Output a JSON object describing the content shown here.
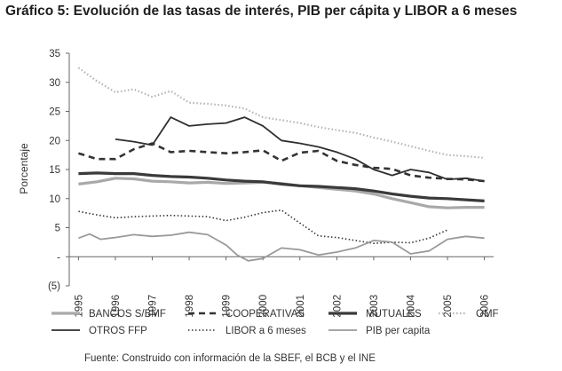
{
  "title": "Gráfico 5: Evolución de las tasas de interés, PIB per cápita y LIBOR a 6 meses",
  "source": "Fuente: Construido con información de la SBEF, el BCB y el INE",
  "chart_data": {
    "type": "line",
    "ylabel": "Porcentaje",
    "xlabel": "",
    "ylim": [
      -5,
      35
    ],
    "xlim": [
      1995,
      2006
    ],
    "yticks": [
      -5,
      0,
      5,
      10,
      15,
      20,
      25,
      30,
      35
    ],
    "yticklabels": [
      "(5)",
      "-",
      "5",
      "10",
      "15",
      "20",
      "25",
      "30",
      "35"
    ],
    "xticklabels": [
      "1995",
      "1996",
      "1997",
      "1998",
      "1999",
      "2000",
      "2001",
      "2002",
      "2003",
      "2004",
      "2005",
      "2006"
    ],
    "grid": false,
    "legend_position": "bottom",
    "series": [
      {
        "name": "BANCOS S/BMF",
        "style": "solid-thick",
        "color": "#a9a9a9",
        "x": [
          1995,
          1995.5,
          1996,
          1996.5,
          1997,
          1997.5,
          1998,
          1998.5,
          1999,
          1999.5,
          2000,
          2000.5,
          2001,
          2001.5,
          2002,
          2002.5,
          2003,
          2003.5,
          2004,
          2004.5,
          2005,
          2005.5,
          2006
        ],
        "y": [
          12.5,
          12.9,
          13.5,
          13.4,
          13.0,
          12.9,
          12.7,
          12.8,
          12.6,
          12.7,
          12.8,
          12.6,
          12.2,
          11.9,
          11.6,
          11.3,
          10.8,
          10.0,
          9.3,
          8.6,
          8.4,
          8.5,
          8.5
        ]
      },
      {
        "name": "COOPERATIVAS",
        "style": "dashed",
        "color": "#333333",
        "x": [
          1995,
          1995.5,
          1996,
          1996.5,
          1997,
          1997.5,
          1998,
          1998.5,
          1999,
          1999.5,
          2000,
          2000.5,
          2001,
          2001.5,
          2002,
          2002.5,
          2003,
          2003.5,
          2004,
          2004.5,
          2005,
          2005.5,
          2006
        ],
        "y": [
          17.8,
          16.8,
          16.8,
          18.5,
          19.5,
          18.0,
          18.2,
          18.0,
          17.8,
          18.0,
          18.3,
          16.5,
          17.9,
          18.2,
          16.5,
          15.8,
          15.3,
          15.1,
          14.0,
          13.6,
          13.4,
          13.3,
          13.0
        ]
      },
      {
        "name": "MUTUALES",
        "style": "solid-thick",
        "color": "#3a3a3a",
        "x": [
          1995,
          1995.5,
          1996,
          1996.5,
          1997,
          1997.5,
          1998,
          1998.5,
          1999,
          1999.5,
          2000,
          2000.5,
          2001,
          2001.5,
          2002,
          2002.5,
          2003,
          2003.5,
          2004,
          2004.5,
          2005,
          2005.5,
          2006
        ],
        "y": [
          14.3,
          14.4,
          14.3,
          14.3,
          14.0,
          13.8,
          13.7,
          13.5,
          13.2,
          13.0,
          12.9,
          12.5,
          12.2,
          12.1,
          11.9,
          11.7,
          11.3,
          10.8,
          10.4,
          10.1,
          10.0,
          9.8,
          9.6
        ]
      },
      {
        "name": "OMF",
        "style": "dotted-thick",
        "color": "#b3b3b3",
        "x": [
          1995,
          1995.5,
          1996,
          1996.5,
          1997,
          1997.5,
          1998,
          1998.5,
          1999,
          1999.5,
          2000,
          2000.5,
          2001,
          2001.5,
          2002,
          2002.5,
          2003,
          2003.5,
          2004,
          2004.5,
          2005,
          2005.5,
          2006
        ],
        "y": [
          32.5,
          30.2,
          28.3,
          28.8,
          27.5,
          28.5,
          26.5,
          26.3,
          26.0,
          25.5,
          24.0,
          23.5,
          23.0,
          22.3,
          21.8,
          21.3,
          20.5,
          19.8,
          19.0,
          18.2,
          17.5,
          17.3,
          17.0
        ]
      },
      {
        "name": "OTROS FFP",
        "style": "solid",
        "color": "#2f2f2f",
        "x": [
          1996,
          1996.5,
          1997,
          1997.5,
          1998,
          1998.5,
          1999,
          1999.5,
          2000,
          2000.5,
          2001,
          2001.5,
          2002,
          2002.5,
          2003,
          2003.5,
          2004,
          2004.5,
          2005,
          2005.5,
          2006
        ],
        "y": [
          20.2,
          19.8,
          19.2,
          24.0,
          22.5,
          22.8,
          23.0,
          24.0,
          22.5,
          20.0,
          19.5,
          18.9,
          18.0,
          16.8,
          15.0,
          14.0,
          15.0,
          14.5,
          13.3,
          13.5,
          13.0
        ]
      },
      {
        "name": "LIBOR a 6 meses",
        "style": "dotted",
        "color": "#333333",
        "x": [
          1995,
          1995.5,
          1996,
          1996.5,
          1997,
          1997.5,
          1998,
          1998.5,
          1999,
          1999.5,
          2000,
          2000.5,
          2001,
          2001.5,
          2002,
          2002.5,
          2003,
          2003.5,
          2004,
          2004.5,
          2005
        ],
        "y": [
          7.8,
          7.2,
          6.7,
          6.9,
          7.0,
          7.1,
          7.0,
          6.9,
          6.2,
          6.8,
          7.6,
          8.0,
          5.8,
          3.6,
          3.3,
          2.8,
          2.3,
          2.5,
          2.4,
          3.2,
          4.6
        ]
      },
      {
        "name": "PIB per capita",
        "style": "solid",
        "color": "#9a9a9a",
        "x": [
          1995,
          1995.3,
          1995.6,
          1996,
          1996.5,
          1997,
          1997.5,
          1998,
          1998.5,
          1999,
          1999.3,
          1999.6,
          2000,
          2000.5,
          2001,
          2001.5,
          2002,
          2002.5,
          2003,
          2003.5,
          2004,
          2004.5,
          2005,
          2005.5,
          2006
        ],
        "y": [
          3.2,
          3.9,
          3.0,
          3.3,
          3.8,
          3.5,
          3.7,
          4.2,
          3.8,
          2.0,
          0.3,
          -0.7,
          -0.3,
          1.5,
          1.2,
          0.3,
          0.8,
          1.5,
          2.8,
          2.5,
          0.5,
          1.0,
          3.0,
          3.5,
          3.2
        ]
      }
    ]
  }
}
